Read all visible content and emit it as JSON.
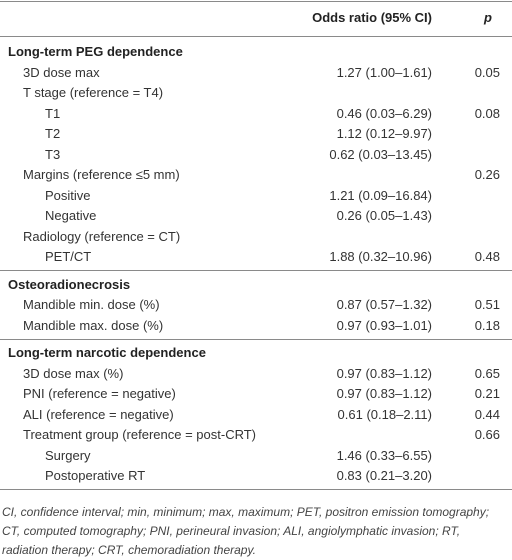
{
  "table": {
    "header": {
      "odds_ratio": "Odds ratio (95% CI)",
      "p": "p"
    },
    "sections": [
      {
        "title": "Long-term PEG dependence",
        "rows": [
          {
            "label": "3D dose max",
            "odds_ratio": "1.27 (1.00–1.61)",
            "p": "0.05"
          },
          {
            "label": "T stage (reference = T4)",
            "rows": [
              {
                "label": "T1",
                "odds_ratio": "0.46 (0.03–6.29)",
                "p": "0.08"
              },
              {
                "label": "T2",
                "odds_ratio": "1.12 (0.12–9.97)"
              },
              {
                "label": "T3",
                "odds_ratio": "0.62 (0.03–13.45)"
              }
            ]
          },
          {
            "label": "Margins (reference ≤5 mm)",
            "p": "0.26",
            "rows": [
              {
                "label": "Positive",
                "odds_ratio": "1.21 (0.09–16.84)"
              },
              {
                "label": "Negative",
                "odds_ratio": "0.26 (0.05–1.43)"
              }
            ]
          },
          {
            "label": "Radiology (reference = CT)",
            "rows": [
              {
                "label": "PET/CT",
                "odds_ratio": "1.88 (0.32–10.96)",
                "p": "0.48"
              }
            ]
          }
        ]
      },
      {
        "title": "Osteoradionecrosis",
        "rows": [
          {
            "label": "Mandible min. dose (%)",
            "odds_ratio": "0.87 (0.57–1.32)",
            "p": "0.51"
          },
          {
            "label": "Mandible max. dose (%)",
            "odds_ratio": "0.97 (0.93–1.01)",
            "p": "0.18"
          }
        ]
      },
      {
        "title": "Long-term narcotic dependence",
        "rows": [
          {
            "label": "3D dose max (%)",
            "odds_ratio": "0.97 (0.83–1.12)",
            "p": "0.65"
          },
          {
            "label": "PNI (reference = negative)",
            "odds_ratio": "0.97 (0.83–1.12)",
            "p": "0.21"
          },
          {
            "label": "ALI (reference = negative)",
            "odds_ratio": "0.61 (0.18–2.11)",
            "p": "0.44"
          },
          {
            "label": "Treatment group (reference = post-CRT)",
            "p": "0.66",
            "rows": [
              {
                "label": "Surgery",
                "odds_ratio": "1.46 (0.33–6.55)"
              },
              {
                "label": "Postoperative RT",
                "odds_ratio": "0.83 (0.21–3.20)"
              }
            ]
          }
        ]
      }
    ],
    "footnote": "CI, confidence interval; min, minimum; max, maximum; PET, positron emission tomography; CT, computed tomography; PNI, perineural invasion; ALI, angiolymphatic invasion; RT, radiation therapy; CRT, chemoradiation therapy."
  }
}
